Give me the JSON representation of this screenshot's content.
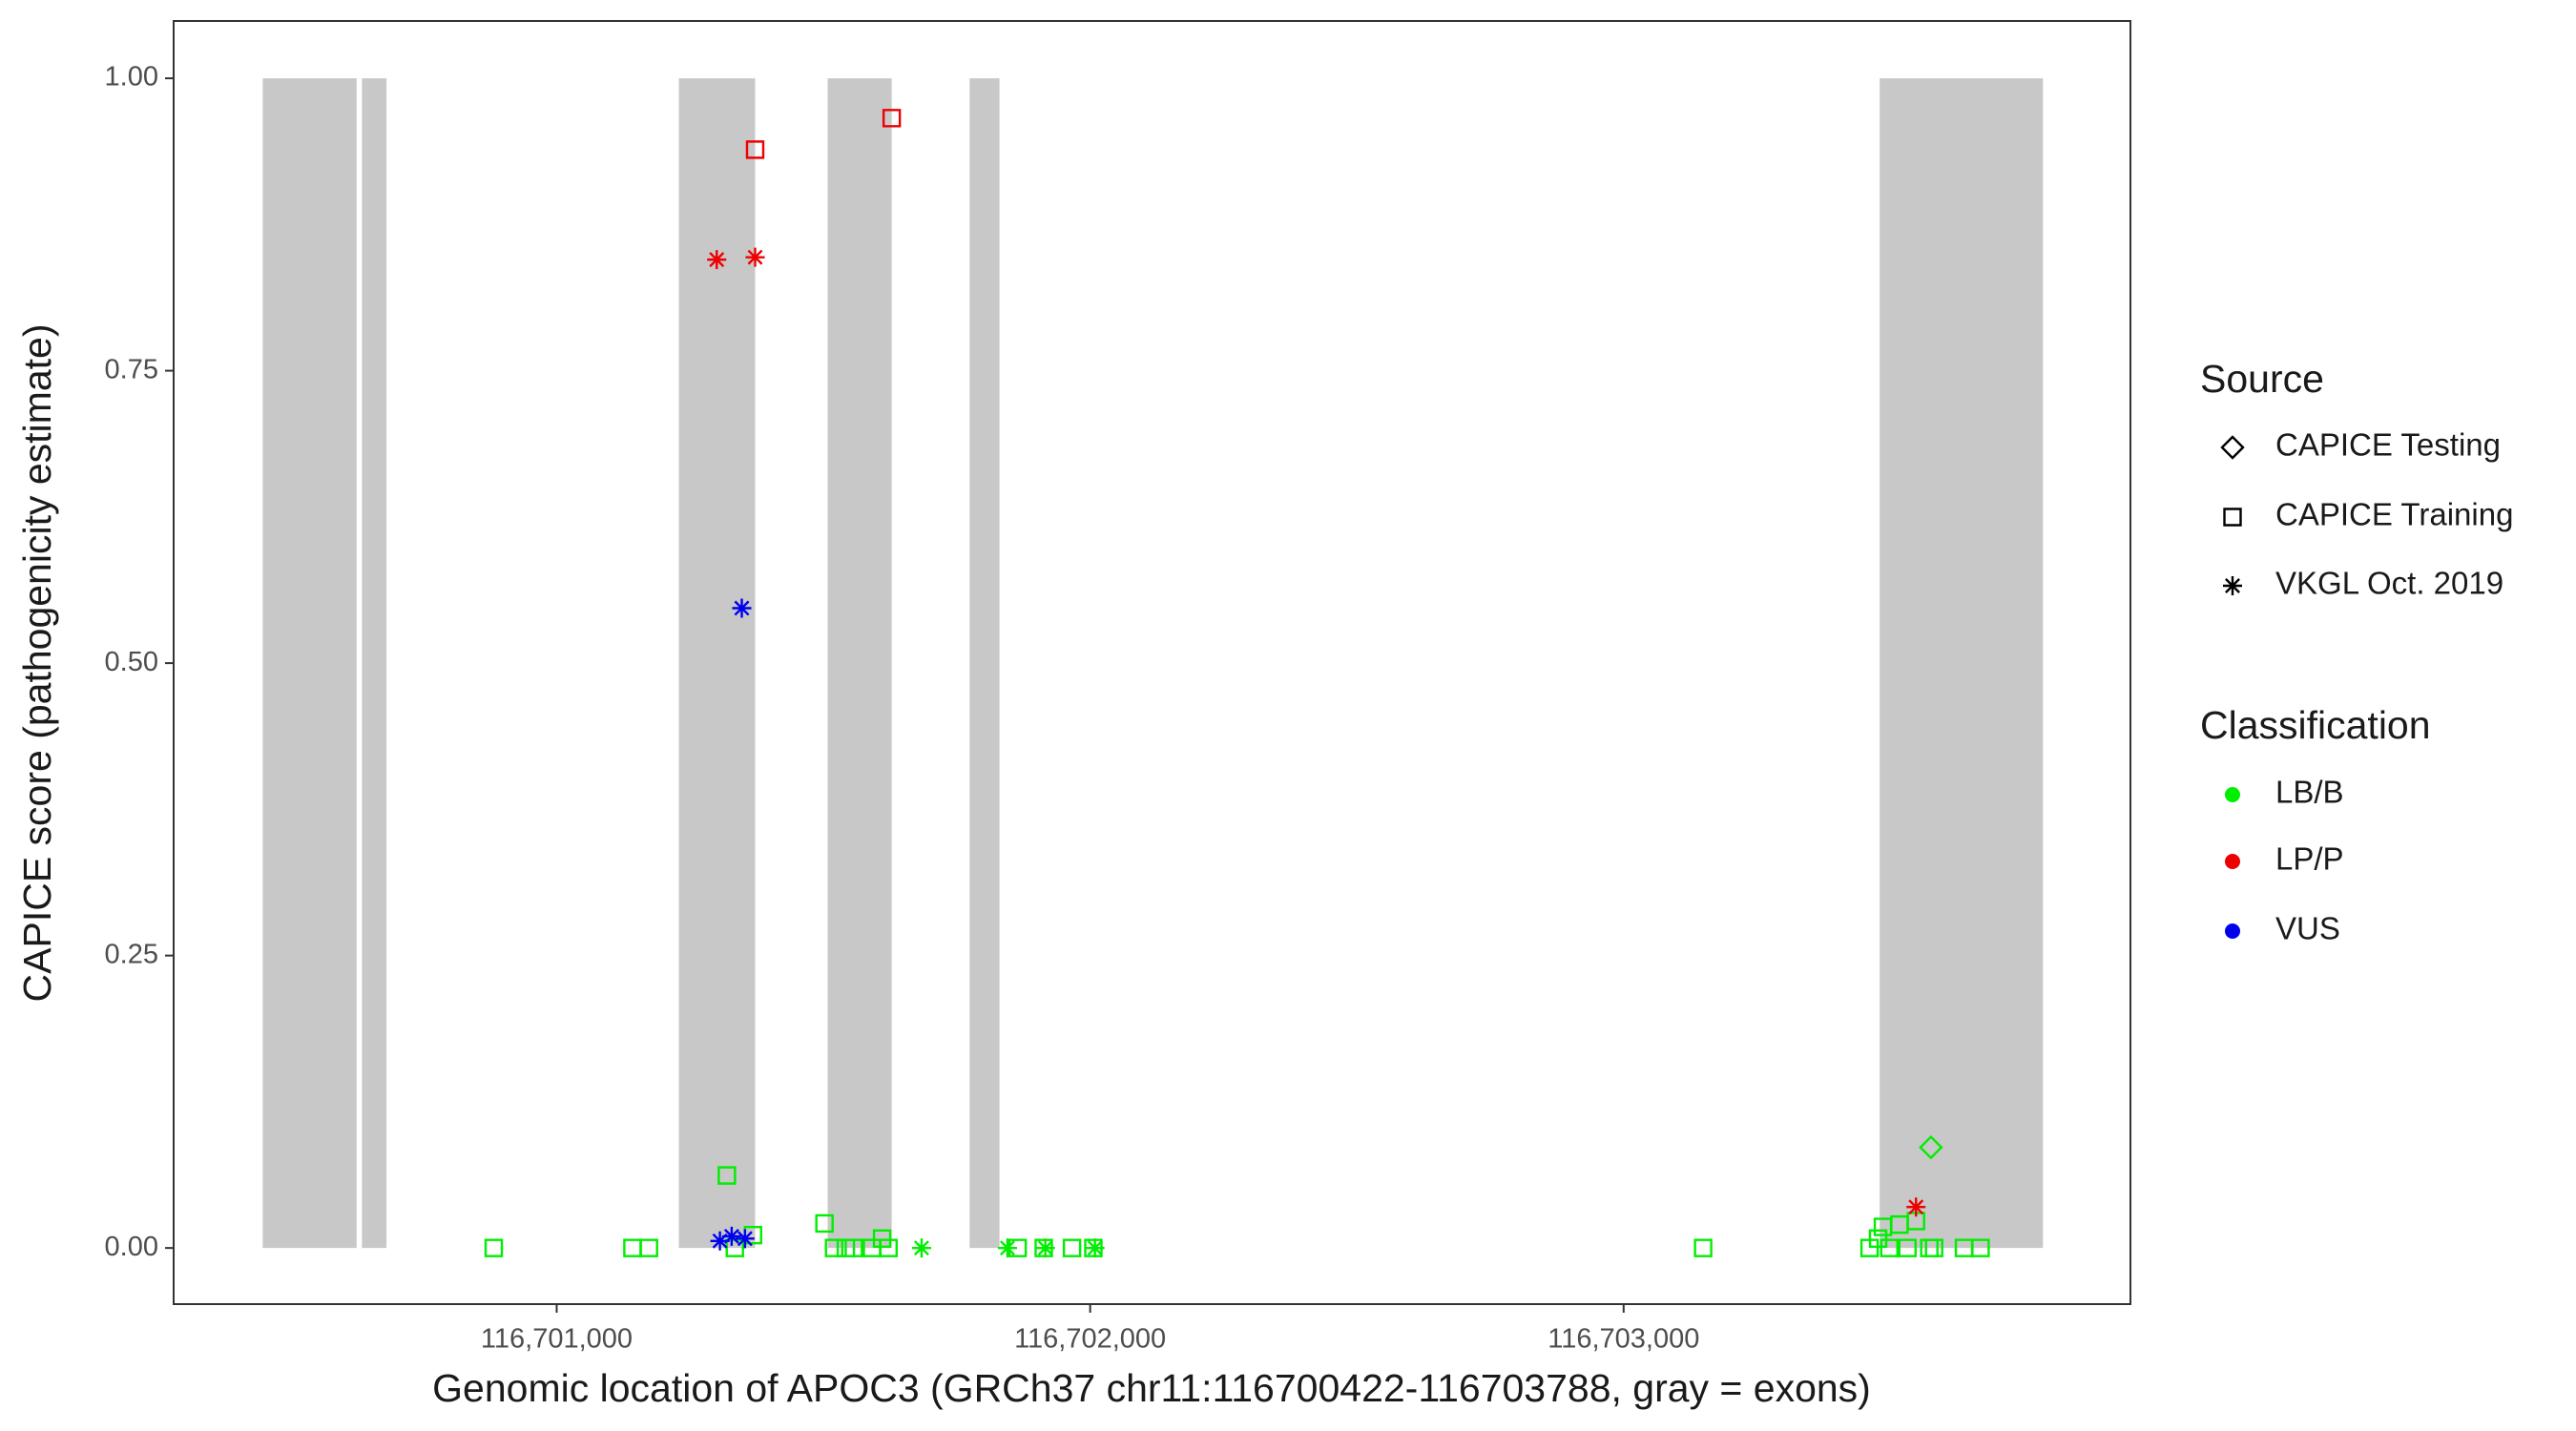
{
  "chart_data": {
    "type": "scatter",
    "xlabel": "Genomic location of APOC3 (GRCh37 chr11:116700422-116703788, gray = exons)",
    "ylabel": "CAPICE score (pathogenicity estimate)",
    "xlim": [
      116700282,
      116703950
    ],
    "ylim": [
      -0.048,
      1.049
    ],
    "xticks": [
      {
        "value": 116701000,
        "label": "116,701,000"
      },
      {
        "value": 116702000,
        "label": "116,702,000"
      },
      {
        "value": 116703000,
        "label": "116,703,000"
      }
    ],
    "yticks": [
      {
        "value": 0,
        "label": "0.00"
      },
      {
        "value": 0.25,
        "label": "0.25"
      },
      {
        "value": 0.5,
        "label": "0.50"
      },
      {
        "value": 0.75,
        "label": "0.75"
      },
      {
        "value": 1,
        "label": "1.00"
      }
    ],
    "exon_color": "#c8c8c8",
    "exons": [
      [
        116700449,
        116700625
      ],
      [
        116700635,
        116700681
      ],
      [
        116701229,
        116701372
      ],
      [
        116701508,
        116701628
      ],
      [
        116701774,
        116701830
      ],
      [
        116703480,
        116703786
      ]
    ],
    "shape_legend": {
      "title": "Source",
      "items": [
        {
          "name": "CAPICE Testing",
          "shape": "diamond"
        },
        {
          "name": "CAPICE Training",
          "shape": "square"
        },
        {
          "name": "VKGL Oct. 2019",
          "shape": "asterisk"
        }
      ]
    },
    "color_legend": {
      "title": "Classification",
      "items": [
        {
          "name": "LB/B",
          "color": "#00ee00"
        },
        {
          "name": "LP/P",
          "color": "#ee0000"
        },
        {
          "name": "VUS",
          "color": "#0000ee"
        }
      ]
    },
    "series": [
      {
        "source": "CAPICE Training",
        "classification": "LB/B",
        "x": [
          116700882,
          116701142,
          116701173,
          116701319,
          116701334,
          116701368,
          116701502,
          116701520,
          116701542,
          116701557,
          116701591,
          116701610,
          116701622,
          116701864,
          116701913,
          116701966,
          116702006,
          116703149,
          116703461,
          116703477,
          116703486,
          116703498,
          116703517,
          116703532,
          116703548,
          116703573,
          116703582,
          116703638,
          116703669
        ],
        "y": [
          0,
          0,
          0,
          0.062,
          0,
          0.011,
          0.021,
          0,
          0,
          0,
          0,
          0.008,
          0,
          0,
          0,
          0,
          0,
          0,
          0,
          0.008,
          0.018,
          0,
          0.02,
          0,
          0.023,
          0,
          0,
          0,
          0
        ]
      },
      {
        "source": "CAPICE Training",
        "classification": "LP/P",
        "x": [
          116701372,
          116701628
        ],
        "y": [
          0.939,
          0.966
        ]
      },
      {
        "source": "CAPICE Testing",
        "classification": "LB/B",
        "x": [
          116703576
        ],
        "y": [
          0.086
        ]
      },
      {
        "source": "VKGL Oct. 2019",
        "classification": "LP/P",
        "x": [
          116701300,
          116701372,
          116703548
        ],
        "y": [
          0.845,
          0.847,
          0.035
        ]
      },
      {
        "source": "VKGL Oct. 2019",
        "classification": "VUS",
        "x": [
          116701347,
          116701306,
          116701328,
          116701353
        ],
        "y": [
          0.547,
          0.006,
          0.01,
          0.008
        ]
      },
      {
        "source": "VKGL Oct. 2019",
        "classification": "LB/B",
        "x": [
          116701684,
          116701845,
          116701916,
          116702009
        ],
        "y": [
          0,
          0,
          0,
          0
        ]
      }
    ]
  }
}
